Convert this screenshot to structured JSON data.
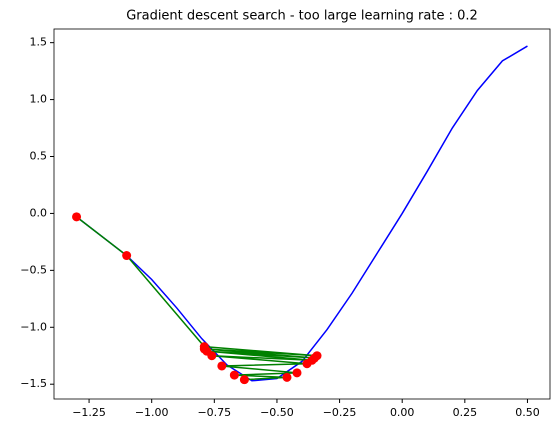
{
  "chart_data": {
    "type": "line",
    "title": "Gradient descent search - too large learning rate : 0.2",
    "curve": {
      "color": "#0000ff",
      "x": [
        -1.3,
        -1.2,
        -1.1,
        -1.0,
        -0.9,
        -0.8,
        -0.7,
        -0.6,
        -0.5,
        -0.4,
        -0.3,
        -0.2,
        -0.1,
        0.0,
        0.1,
        0.2,
        0.3,
        0.4,
        0.5
      ],
      "y": [
        -0.03,
        -0.2,
        -0.37,
        -0.58,
        -0.83,
        -1.1,
        -1.33,
        -1.47,
        -1.45,
        -1.3,
        -1.02,
        -0.7,
        -0.35,
        0.0,
        0.37,
        0.75,
        1.08,
        1.34,
        1.47
      ]
    },
    "steps": {
      "color": "#008000",
      "marker_color": "#ff0000",
      "x": [
        -1.3,
        -1.1,
        -0.79,
        -0.34,
        -0.79,
        -0.35,
        -0.78,
        -0.36,
        -0.76,
        -0.38,
        -0.72,
        -0.42,
        -0.67,
        -0.46,
        -0.63
      ],
      "y": [
        -0.03,
        -0.37,
        -1.17,
        -1.25,
        -1.19,
        -1.27,
        -1.21,
        -1.29,
        -1.25,
        -1.32,
        -1.34,
        -1.4,
        -1.42,
        -1.44,
        -1.46
      ]
    },
    "xlim": [
      -1.39,
      0.59
    ],
    "ylim": [
      -1.63,
      1.62
    ],
    "xticks": [
      {
        "value": -1.25,
        "label": "−1.25"
      },
      {
        "value": -1.0,
        "label": "−1.00"
      },
      {
        "value": -0.75,
        "label": "−0.75"
      },
      {
        "value": -0.5,
        "label": "−0.50"
      },
      {
        "value": -0.25,
        "label": "−0.25"
      },
      {
        "value": 0,
        "label": "0.00"
      },
      {
        "value": 0.25,
        "label": "0.25"
      },
      {
        "value": 0.5,
        "label": "0.50"
      }
    ],
    "yticks": [
      {
        "value": -1.5,
        "label": "−1.5"
      },
      {
        "value": -1.0,
        "label": "−1.0"
      },
      {
        "value": -0.5,
        "label": "−0.5"
      },
      {
        "value": 0,
        "label": "0.0"
      },
      {
        "value": 0.5,
        "label": "0.5"
      },
      {
        "value": 1.0,
        "label": "1.0"
      },
      {
        "value": 1.5,
        "label": "1.5"
      }
    ]
  }
}
